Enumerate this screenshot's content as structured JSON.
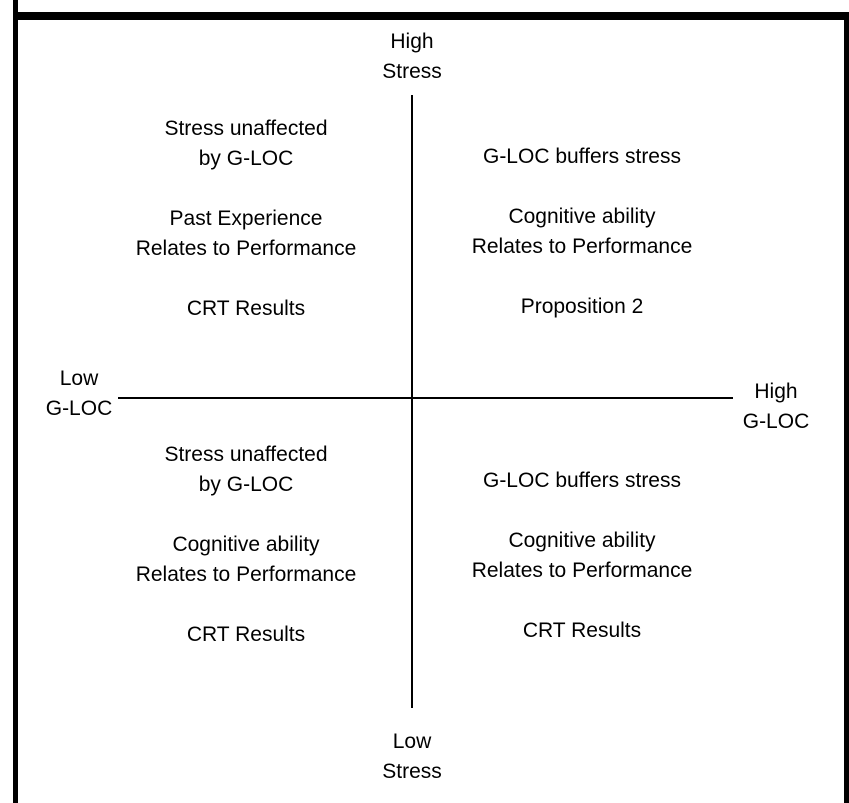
{
  "colors": {
    "background": "#ffffff",
    "line": "#000000",
    "text": "#000000"
  },
  "axes": {
    "top": {
      "line1": "High",
      "line2": "Stress"
    },
    "bottom": {
      "line1": "Low",
      "line2": "Stress"
    },
    "left": {
      "line1": "Low",
      "line2": "G-LOC"
    },
    "right": {
      "line1": "High",
      "line2": "G-LOC"
    }
  },
  "quadrants": {
    "top_left": {
      "group1": {
        "line1": "Stress unaffected",
        "line2": "by G-LOC"
      },
      "group2": {
        "line1": "Past Experience",
        "line2": "Relates to Performance"
      },
      "group3": {
        "line1": "CRT Results"
      }
    },
    "top_right": {
      "group1": {
        "line1": "G-LOC buffers stress"
      },
      "group2": {
        "line1": "Cognitive ability",
        "line2": "Relates to Performance"
      },
      "group3": {
        "line1": "Proposition 2"
      }
    },
    "bottom_left": {
      "group1": {
        "line1": "Stress unaffected",
        "line2": "by G-LOC"
      },
      "group2": {
        "line1": "Cognitive ability",
        "line2": "Relates to Performance"
      },
      "group3": {
        "line1": "CRT Results"
      }
    },
    "bottom_right": {
      "group1": {
        "line1": "G-LOC buffers stress"
      },
      "group2": {
        "line1": "Cognitive ability",
        "line2": "Relates to Performance"
      },
      "group3": {
        "line1": "CRT Results"
      }
    }
  }
}
